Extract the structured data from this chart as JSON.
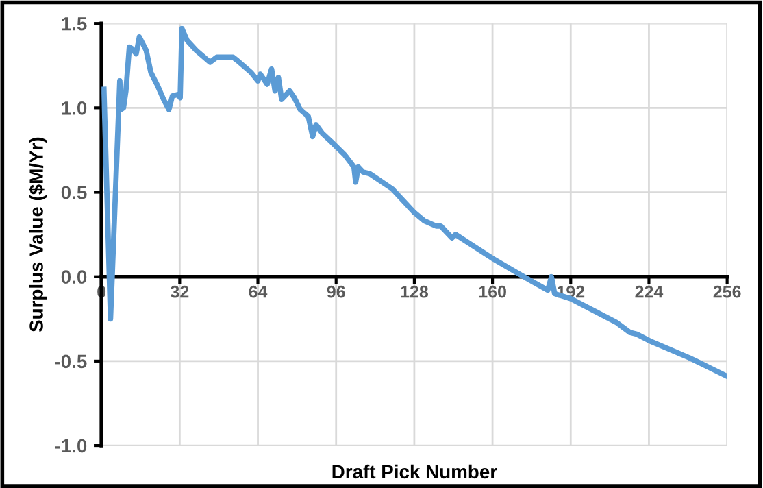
{
  "chart_data": {
    "type": "line",
    "xlabel": "Draft Pick Number",
    "ylabel": "Surplus Value ($M/Yr)",
    "x": [
      1,
      3.7,
      7.5,
      8,
      9,
      10,
      11.4,
      12.5,
      14.2,
      15.5,
      18.3,
      20.2,
      23,
      25.4,
      27.6,
      29,
      31.4,
      32.2,
      32.9,
      35,
      38.8,
      44.4,
      47.2,
      53.8,
      55.6,
      61.2,
      64,
      65,
      67.8,
      69.6,
      71,
      72.4,
      73.7,
      77,
      78.9,
      81.3,
      84.6,
      86.4,
      87.8,
      90.3,
      94,
      99.6,
      103.3,
      104,
      105.1,
      107,
      109.8,
      119,
      128,
      132.2,
      136.9,
      138.8,
      143.4,
      144.9,
      159.8,
      175.2,
      182.6,
      184.1,
      185.4,
      192,
      210.6,
      216.2,
      219,
      224.3,
      240.5,
      256
    ],
    "series": [
      {
        "color": "#5b9bd5",
        "values": [
          1.11,
          -0.25,
          1.16,
          0.99,
          1.0,
          1.1,
          1.36,
          1.35,
          1.32,
          1.42,
          1.34,
          1.21,
          1.13,
          1.05,
          0.99,
          1.07,
          1.08,
          1.06,
          1.47,
          1.4,
          1.34,
          1.27,
          1.3,
          1.3,
          1.28,
          1.21,
          1.16,
          1.2,
          1.14,
          1.23,
          1.1,
          1.18,
          1.05,
          1.1,
          1.06,
          0.99,
          0.95,
          0.83,
          0.9,
          0.85,
          0.8,
          0.72,
          0.65,
          0.56,
          0.65,
          0.62,
          0.61,
          0.52,
          0.38,
          0.33,
          0.3,
          0.3,
          0.23,
          0.25,
          0.11,
          -0.02,
          -0.08,
          0.0,
          -0.1,
          -0.13,
          -0.27,
          -0.33,
          -0.34,
          -0.38,
          -0.48,
          -0.59
        ]
      }
    ],
    "xlim": [
      0,
      256
    ],
    "xticks": [
      0,
      32,
      64,
      96,
      128,
      160,
      192,
      224,
      256
    ],
    "ylim": [
      -1,
      1.5
    ],
    "yticks": [
      {
        "value": -1,
        "label": "-1.0"
      },
      {
        "value": -0.5,
        "label": "-0.5"
      },
      {
        "value": 0,
        "label": "0.0"
      },
      {
        "value": 0.5,
        "label": "0.5"
      },
      {
        "value": 1,
        "label": "1.0"
      },
      {
        "value": 1.5,
        "label": "1.5"
      }
    ],
    "grid": true,
    "marker": "none",
    "line_style": "solid",
    "legend": false
  }
}
